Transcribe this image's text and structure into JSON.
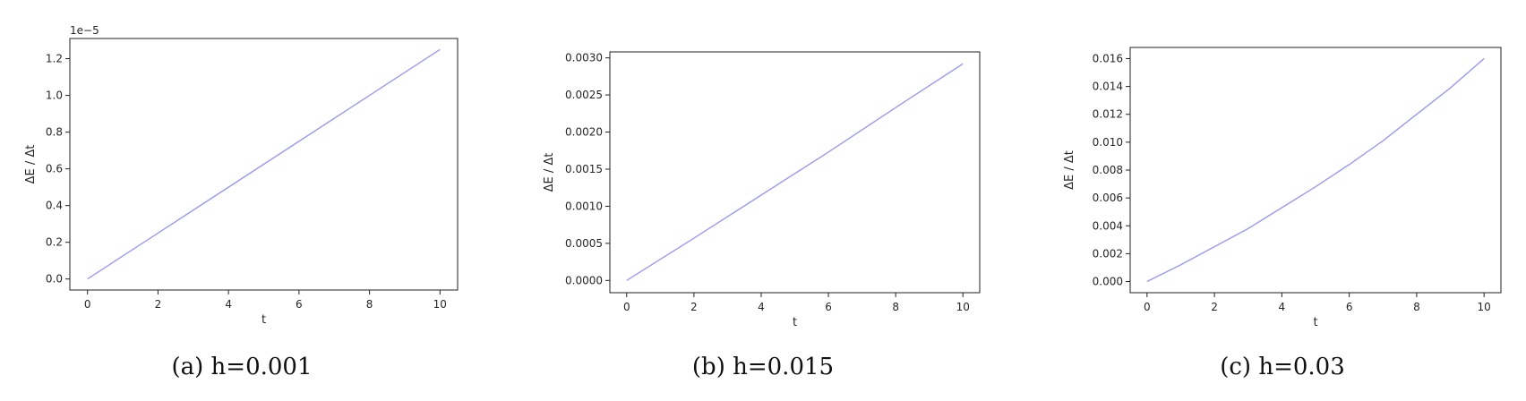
{
  "chart_data": [
    {
      "type": "line",
      "caption": "(a) h=0.001",
      "xlabel": "t",
      "ylabel": "ΔE / Δt",
      "offset_text": "1e−5",
      "xlim": [
        -0.5,
        10.5
      ],
      "ylim": [
        -0.06,
        1.31
      ],
      "xticks": [
        0,
        2,
        4,
        6,
        8,
        10
      ],
      "yticks": [
        0.0,
        0.2,
        0.4,
        0.6,
        0.8,
        1.0,
        1.2
      ],
      "ytick_labels": [
        "0.0",
        "0.2",
        "0.4",
        "0.6",
        "0.8",
        "1.0",
        "1.2"
      ],
      "series": [
        {
          "color": "#9a9af0",
          "x": [
            0,
            2,
            4,
            6,
            8,
            10
          ],
          "y": [
            0.0,
            0.25,
            0.5,
            0.75,
            1.0,
            1.25
          ]
        }
      ]
    },
    {
      "type": "line",
      "caption": "(b) h=0.015",
      "xlabel": "t",
      "ylabel": "ΔE / Δt",
      "xlim": [
        -0.5,
        10.5
      ],
      "ylim": [
        -0.000165,
        0.00308
      ],
      "xticks": [
        0,
        2,
        4,
        6,
        8,
        10
      ],
      "yticks": [
        0.0,
        0.0005,
        0.001,
        0.0015,
        0.002,
        0.0025,
        0.003
      ],
      "ytick_labels": [
        "0.0000",
        "0.0005",
        "0.0010",
        "0.0015",
        "0.0020",
        "0.0025",
        "0.0030"
      ],
      "series": [
        {
          "color": "#9a9af0",
          "x": [
            0,
            2,
            4,
            6,
            8,
            10
          ],
          "y": [
            0.0,
            0.00057,
            0.00115,
            0.00173,
            0.00233,
            0.00292
          ]
        }
      ]
    },
    {
      "type": "line",
      "caption": "(c) h=0.03",
      "xlabel": "t",
      "ylabel": "ΔE / Δt",
      "xlim": [
        -0.5,
        10.5
      ],
      "ylim": [
        -0.0008,
        0.0168
      ],
      "xticks": [
        0,
        2,
        4,
        6,
        8,
        10
      ],
      "yticks": [
        0.0,
        0.002,
        0.004,
        0.006,
        0.008,
        0.01,
        0.012,
        0.014,
        0.016
      ],
      "ytick_labels": [
        "0.000",
        "0.002",
        "0.004",
        "0.006",
        "0.008",
        "0.010",
        "0.012",
        "0.014",
        "0.016"
      ],
      "series": [
        {
          "color": "#9a9af0",
          "x": [
            0,
            1,
            2,
            3,
            4,
            5,
            6,
            7,
            8,
            9,
            10
          ],
          "y": [
            0.0,
            0.0012,
            0.0025,
            0.0038,
            0.0053,
            0.0068,
            0.0084,
            0.0101,
            0.012,
            0.0139,
            0.016
          ]
        }
      ]
    }
  ]
}
